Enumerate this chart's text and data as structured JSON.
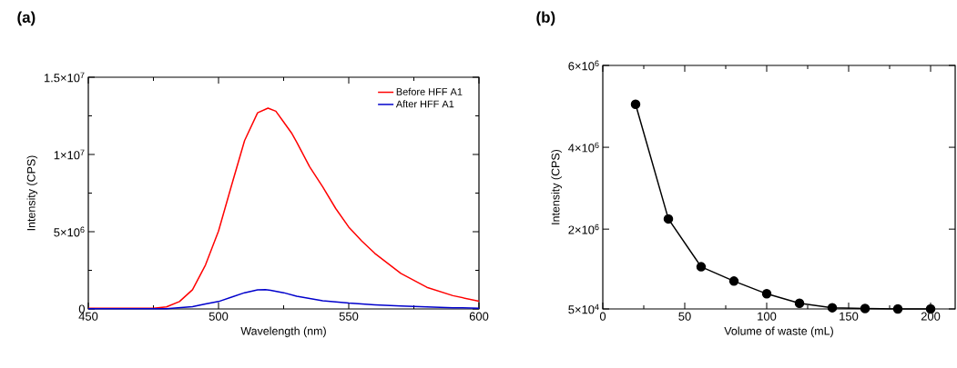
{
  "chart_data": [
    {
      "type": "line",
      "title": "(a)",
      "xlabel": "Wavelength (nm)",
      "ylabel": "Intensity (CPS)",
      "xlim": [
        450,
        600
      ],
      "xticks": [
        450,
        500,
        550,
        600
      ],
      "ylim": [
        0,
        15000000
      ],
      "yticks": [
        0,
        {
          "value": 5000000,
          "label": "5×10$^{6}$"
        },
        {
          "value": 10000000,
          "label": "1×10$^{7}$"
        },
        {
          "value": 15000000,
          "label": "1.5×10$^{7}$"
        }
      ],
      "legend": "top right",
      "marker": "none",
      "line_style": "solid",
      "series": [
        {
          "name": "Before HFF A1",
          "color": "#ff0000",
          "x": [
            450,
            475,
            480,
            485,
            490,
            495,
            500,
            505,
            510,
            515,
            519,
            522,
            525,
            528,
            530,
            535,
            540,
            545,
            550,
            555,
            560,
            570,
            580,
            590,
            600
          ],
          "values": [
            50000,
            50000,
            130000,
            480000,
            1240000,
            2850000,
            5040000,
            8000000,
            10900000,
            12700000,
            13000000,
            12800000,
            12100000,
            11400000,
            10800000,
            9200000,
            7900000,
            6500000,
            5300000,
            4400000,
            3600000,
            2300000,
            1400000,
            860000,
            500000
          ]
        },
        {
          "name": "After HFF A1",
          "color": "#0000cc",
          "x": [
            450,
            480,
            490,
            495,
            500,
            505,
            510,
            515,
            518,
            520,
            525,
            530,
            540,
            550,
            560,
            570,
            580,
            590,
            600
          ],
          "values": [
            20000,
            20000,
            150000,
            320000,
            480000,
            760000,
            1050000,
            1240000,
            1250000,
            1200000,
            1050000,
            820000,
            530000,
            380000,
            270000,
            190000,
            130000,
            80000,
            50000
          ]
        }
      ]
    },
    {
      "type": "line",
      "title": "(b)",
      "xlabel": "Volume of waste (mL)",
      "ylabel": "Intensity (CPS)",
      "xlim": [
        0,
        215
      ],
      "xticks": [
        0,
        50,
        100,
        150,
        200
      ],
      "ylim": [
        50000,
        6000000
      ],
      "yticks": [
        {
          "value": 50000,
          "label": "5×10$^{4}$"
        },
        {
          "value": 2000000,
          "label": "2×10$^{6}$"
        },
        {
          "value": 4000000,
          "label": "4×10$^{6}$"
        },
        {
          "value": 6000000,
          "label": "6×10$^{6}$"
        }
      ],
      "marker": "circle",
      "line_style": "solid",
      "series": [
        {
          "color": "#000000",
          "x": [
            20,
            40,
            60,
            80,
            100,
            120,
            140,
            160,
            180,
            200
          ],
          "values": [
            5050000,
            2250000,
            1080000,
            730000,
            420000,
            190000,
            80000,
            60000,
            50000,
            50000
          ]
        }
      ]
    }
  ]
}
